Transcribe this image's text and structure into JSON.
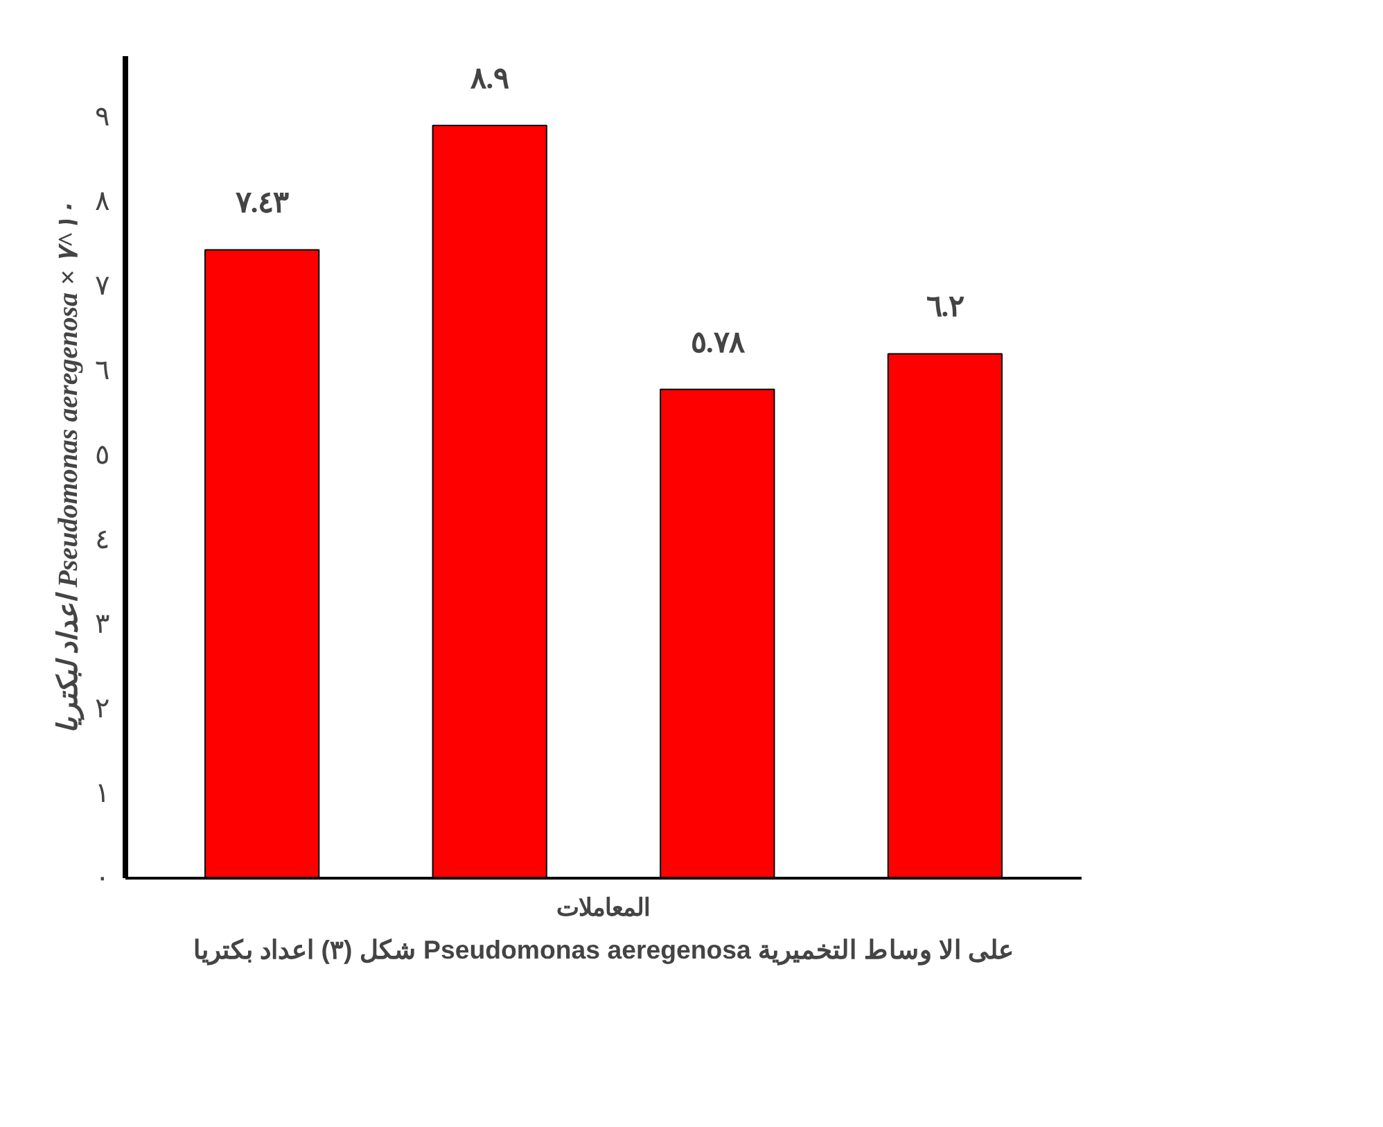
{
  "chart_data": {
    "type": "bar",
    "title": "شكل (٣) اعداد بكتريا Pseudomonas aeregenosa على الا وساط التخميرية",
    "xlabel": "المعاملات",
    "ylabel": "اعداد لبكتريا Pseudomonas aeregenosa × ١٠^٧",
    "categories": [
      null,
      null,
      null,
      null
    ],
    "series": [
      {
        "color": "#ff0000",
        "values": [
          7.43,
          8.9,
          5.78,
          6.2
        ],
        "value_labels": [
          "٧.٤٣",
          "٨.٩",
          "٥.٧٨",
          "٦.٢"
        ]
      }
    ],
    "ylim": [
      0,
      9
    ],
    "yticks": [
      {
        "value": 0,
        "label": "٠"
      },
      {
        "value": 1,
        "label": "١"
      },
      {
        "value": 2,
        "label": "٢"
      },
      {
        "value": 3,
        "label": "٣"
      },
      {
        "value": 4,
        "label": "٤"
      },
      {
        "value": 5,
        "label": "٥"
      },
      {
        "value": 6,
        "label": "٦"
      },
      {
        "value": 7,
        "label": "٧"
      },
      {
        "value": 8,
        "label": "٨"
      },
      {
        "value": 9,
        "label": "٩"
      }
    ],
    "grid": false
  }
}
